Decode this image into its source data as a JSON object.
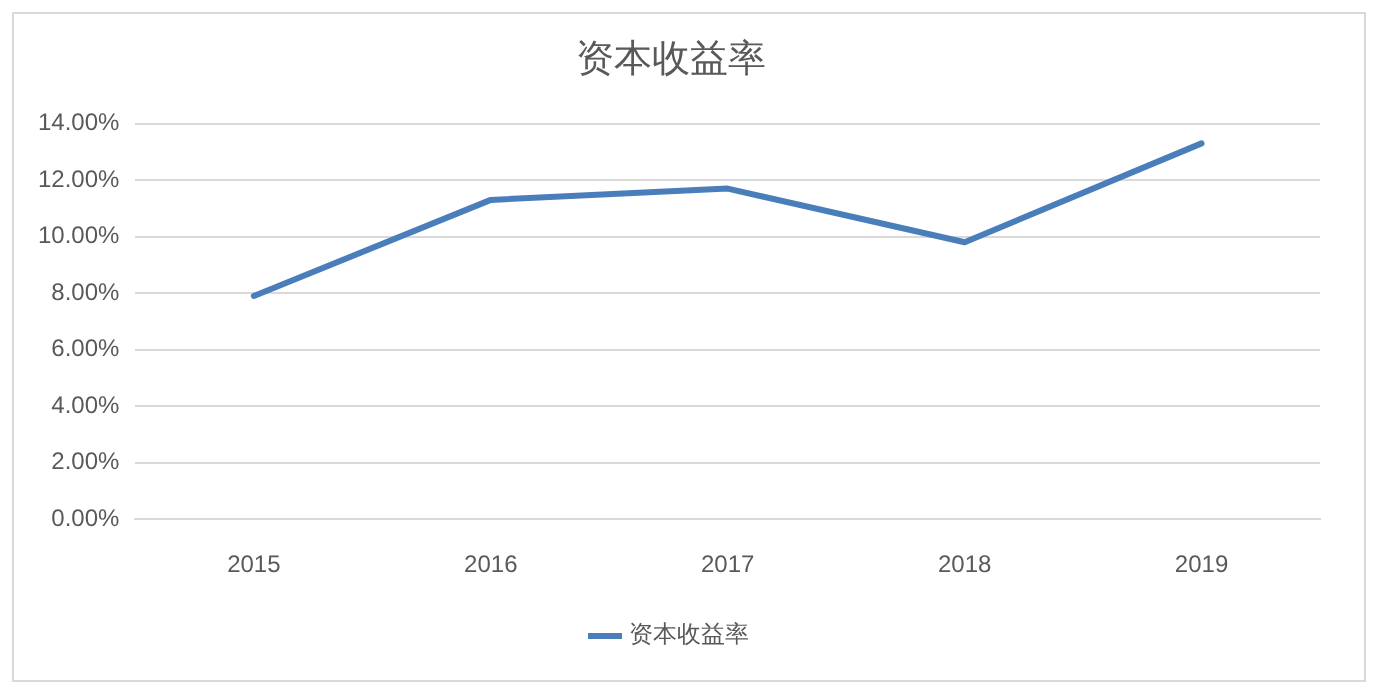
{
  "chart_data": {
    "type": "line",
    "title": "资本收益率",
    "categories": [
      "2015",
      "2016",
      "2017",
      "2018",
      "2019"
    ],
    "series": [
      {
        "name": "资本收益率",
        "color": "#4a7ebb",
        "values": [
          7.9,
          11.3,
          11.7,
          9.8,
          13.3
        ]
      }
    ],
    "ylim": [
      0,
      14
    ],
    "yticks": [
      {
        "value": 0,
        "label": "0.00%"
      },
      {
        "value": 2,
        "label": "2.00%"
      },
      {
        "value": 4,
        "label": "4.00%"
      },
      {
        "value": 6,
        "label": "6.00%"
      },
      {
        "value": 8,
        "label": "8.00%"
      },
      {
        "value": 10,
        "label": "10.00%"
      },
      {
        "value": 12,
        "label": "12.00%"
      },
      {
        "value": 14,
        "label": "14.00%"
      }
    ],
    "grid": "y",
    "legend": "bottom",
    "marker": "none",
    "line_style": "solid"
  }
}
